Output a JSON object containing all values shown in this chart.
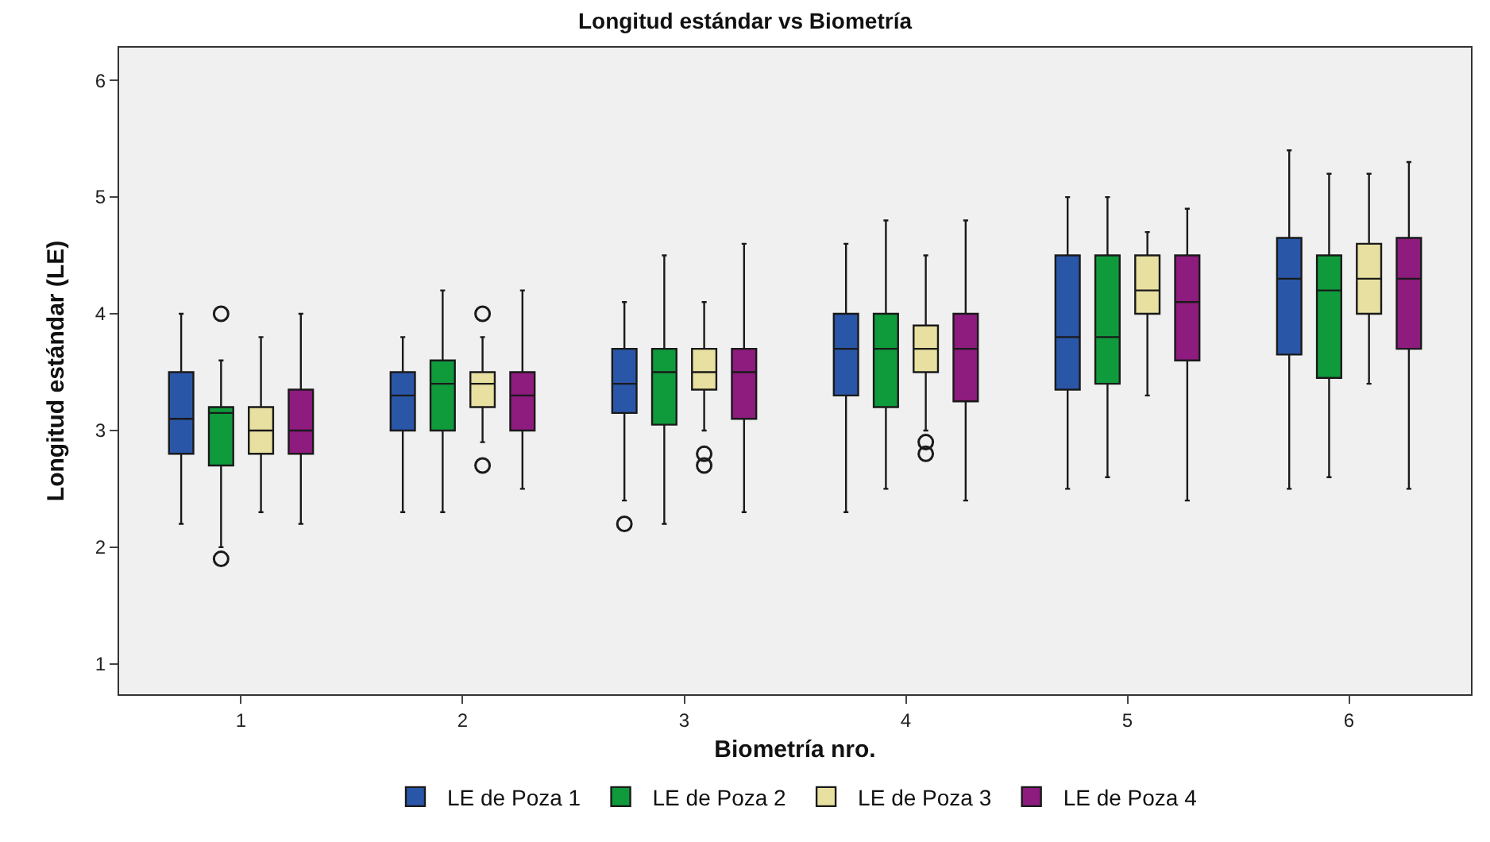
{
  "chart_data": {
    "type": "box",
    "title": "Longitud estándar vs Biometría",
    "xlabel": "Biometría nro.",
    "ylabel": "Longitud estándar (LE)",
    "categories": [
      "1",
      "2",
      "3",
      "4",
      "5",
      "6"
    ],
    "ylim": [
      0.74,
      6.28
    ],
    "yticks": [
      1,
      2,
      3,
      4,
      5,
      6
    ],
    "grid": false,
    "legend": "bottom",
    "series": [
      {
        "name": "LE de Poza 1",
        "color": "#2a56a8",
        "boxes": [
          {
            "low": 2.2,
            "q1": 2.8,
            "median": 3.1,
            "q3": 3.5,
            "high": 4.0
          },
          {
            "low": 2.3,
            "q1": 3.0,
            "median": 3.3,
            "q3": 3.5,
            "high": 3.8
          },
          {
            "low": 2.4,
            "q1": 3.15,
            "median": 3.4,
            "q3": 3.7,
            "high": 4.1,
            "outliers": [
              2.2
            ]
          },
          {
            "low": 2.3,
            "q1": 3.3,
            "median": 3.7,
            "q3": 4.0,
            "high": 4.6
          },
          {
            "low": 2.5,
            "q1": 3.35,
            "median": 3.8,
            "q3": 4.5,
            "high": 5.0
          },
          {
            "low": 2.5,
            "q1": 3.65,
            "median": 4.3,
            "q3": 4.65,
            "high": 5.4
          }
        ]
      },
      {
        "name": "LE de Poza 2",
        "color": "#0f9b3c",
        "boxes": [
          {
            "low": 2.0,
            "q1": 2.7,
            "median": 3.15,
            "q3": 3.2,
            "high": 3.6,
            "outliers": [
              4.0,
              1.9
            ]
          },
          {
            "low": 2.3,
            "q1": 3.0,
            "median": 3.4,
            "q3": 3.6,
            "high": 4.2
          },
          {
            "low": 2.2,
            "q1": 3.05,
            "median": 3.5,
            "q3": 3.7,
            "high": 4.5
          },
          {
            "low": 2.5,
            "q1": 3.2,
            "median": 3.7,
            "q3": 4.0,
            "high": 4.8
          },
          {
            "low": 2.6,
            "q1": 3.4,
            "median": 3.8,
            "q3": 4.5,
            "high": 5.0
          },
          {
            "low": 2.6,
            "q1": 3.45,
            "median": 4.2,
            "q3": 4.5,
            "high": 5.2
          }
        ]
      },
      {
        "name": "LE de Poza 3",
        "color": "#e8e0a0",
        "boxes": [
          {
            "low": 2.3,
            "q1": 2.8,
            "median": 3.0,
            "q3": 3.2,
            "high": 3.8
          },
          {
            "low": 2.9,
            "q1": 3.2,
            "median": 3.4,
            "q3": 3.5,
            "high": 3.8,
            "outliers": [
              4.0,
              2.7
            ]
          },
          {
            "low": 3.0,
            "q1": 3.35,
            "median": 3.5,
            "q3": 3.7,
            "high": 4.1,
            "outliers": [
              2.8,
              2.7
            ]
          },
          {
            "low": 3.0,
            "q1": 3.5,
            "median": 3.7,
            "q3": 3.9,
            "high": 4.5,
            "outliers": [
              2.9,
              2.8
            ]
          },
          {
            "low": 3.3,
            "q1": 4.0,
            "median": 4.2,
            "q3": 4.5,
            "high": 4.7
          },
          {
            "low": 3.4,
            "q1": 4.0,
            "median": 4.3,
            "q3": 4.6,
            "high": 5.2
          }
        ]
      },
      {
        "name": "LE de Poza 4",
        "color": "#8e1b7e",
        "boxes": [
          {
            "low": 2.2,
            "q1": 2.8,
            "median": 3.0,
            "q3": 3.35,
            "high": 4.0
          },
          {
            "low": 2.5,
            "q1": 3.0,
            "median": 3.3,
            "q3": 3.5,
            "high": 4.2
          },
          {
            "low": 2.3,
            "q1": 3.1,
            "median": 3.5,
            "q3": 3.7,
            "high": 4.6
          },
          {
            "low": 2.4,
            "q1": 3.25,
            "median": 3.7,
            "q3": 4.0,
            "high": 4.8
          },
          {
            "low": 2.4,
            "q1": 3.6,
            "median": 4.1,
            "q3": 4.5,
            "high": 4.9
          },
          {
            "low": 2.5,
            "q1": 3.7,
            "median": 4.3,
            "q3": 4.65,
            "high": 5.3
          }
        ]
      }
    ]
  }
}
